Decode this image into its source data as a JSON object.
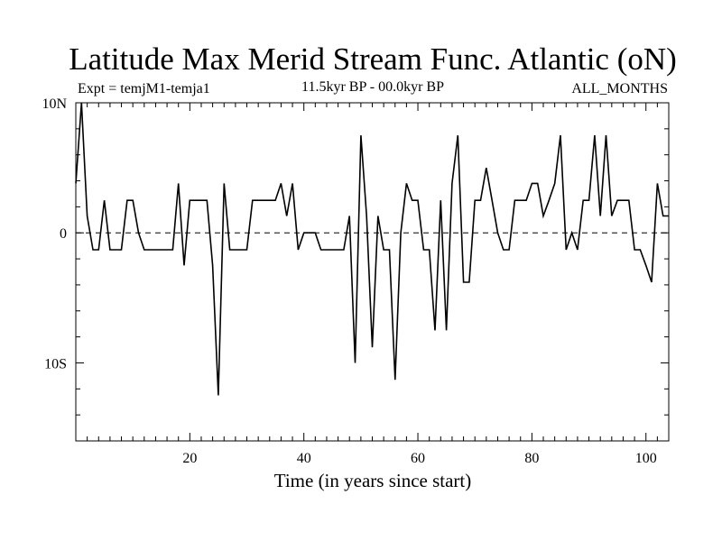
{
  "chart_data": {
    "type": "line",
    "title": "Latitude Max Merid Stream Func. Atlantic (oN)",
    "subtitle_left": "Expt = temjM1-temja1",
    "subtitle_center": "11.5kyr BP - 00.0kyr BP",
    "subtitle_right": "ALL_MONTHS",
    "xlabel": "Time (in years since start)",
    "ylabel": "",
    "xlim": [
      0,
      104
    ],
    "ylim": [
      -16,
      10
    ],
    "x_ticks": [
      20,
      40,
      60,
      80,
      100
    ],
    "y_ticks": [
      {
        "value": 10,
        "label": "10N"
      },
      {
        "value": 0,
        "label": "0"
      },
      {
        "value": -10,
        "label": "10S"
      }
    ],
    "zero_line": "dashed",
    "series": [
      {
        "x": [
          0,
          1,
          2,
          3,
          4,
          5,
          6,
          7,
          8,
          9,
          10,
          11,
          12,
          13,
          14,
          15,
          16,
          17,
          18,
          19,
          20,
          21,
          22,
          23,
          24,
          25,
          26,
          27,
          28,
          29,
          30,
          31,
          32,
          33,
          34,
          35,
          36,
          37,
          38,
          39,
          40,
          41,
          42,
          43,
          44,
          45,
          46,
          47,
          48,
          49,
          50,
          51,
          52,
          53,
          54,
          55,
          56,
          57,
          58,
          59,
          60,
          61,
          62,
          63,
          64,
          65,
          66,
          67,
          68,
          69,
          70,
          71,
          72,
          73,
          74,
          75,
          76,
          77,
          78,
          79,
          80,
          81,
          82,
          83,
          84,
          85,
          86,
          87,
          88,
          89,
          90,
          91,
          92,
          93,
          94,
          95,
          96,
          97,
          98,
          99,
          100,
          101,
          102,
          103,
          104
        ],
        "values": [
          3.8,
          10,
          1.3,
          -1.3,
          -1.3,
          2.5,
          -1.3,
          -1.3,
          -1.3,
          2.5,
          2.5,
          0,
          -1.3,
          -1.3,
          -1.3,
          -1.3,
          -1.3,
          -1.3,
          3.8,
          -2.5,
          2.5,
          2.5,
          2.5,
          2.5,
          -2.5,
          -12.5,
          3.8,
          -1.3,
          -1.3,
          -1.3,
          -1.3,
          2.5,
          2.5,
          2.5,
          2.5,
          2.5,
          3.8,
          1.3,
          3.8,
          -1.3,
          0,
          0,
          0,
          -1.3,
          -1.3,
          -1.3,
          -1.3,
          -1.3,
          1.3,
          -10,
          7.5,
          1.3,
          -8.8,
          1.3,
          -1.3,
          -1.3,
          -11.3,
          0,
          3.8,
          2.5,
          2.5,
          -1.3,
          -1.3,
          -7.5,
          2.5,
          -7.5,
          3.8,
          7.5,
          -3.8,
          -3.8,
          2.5,
          2.5,
          5,
          2.5,
          0,
          -1.3,
          -1.3,
          2.5,
          2.5,
          2.5,
          3.8,
          3.8,
          1.3,
          2.5,
          3.8,
          7.5,
          -1.3,
          0,
          -1.3,
          2.5,
          2.5,
          7.5,
          1.3,
          7.5,
          1.3,
          2.5,
          2.5,
          2.5,
          -1.3,
          -1.3,
          -2.5,
          -3.8,
          3.8,
          1.3,
          1.3
        ]
      }
    ]
  }
}
